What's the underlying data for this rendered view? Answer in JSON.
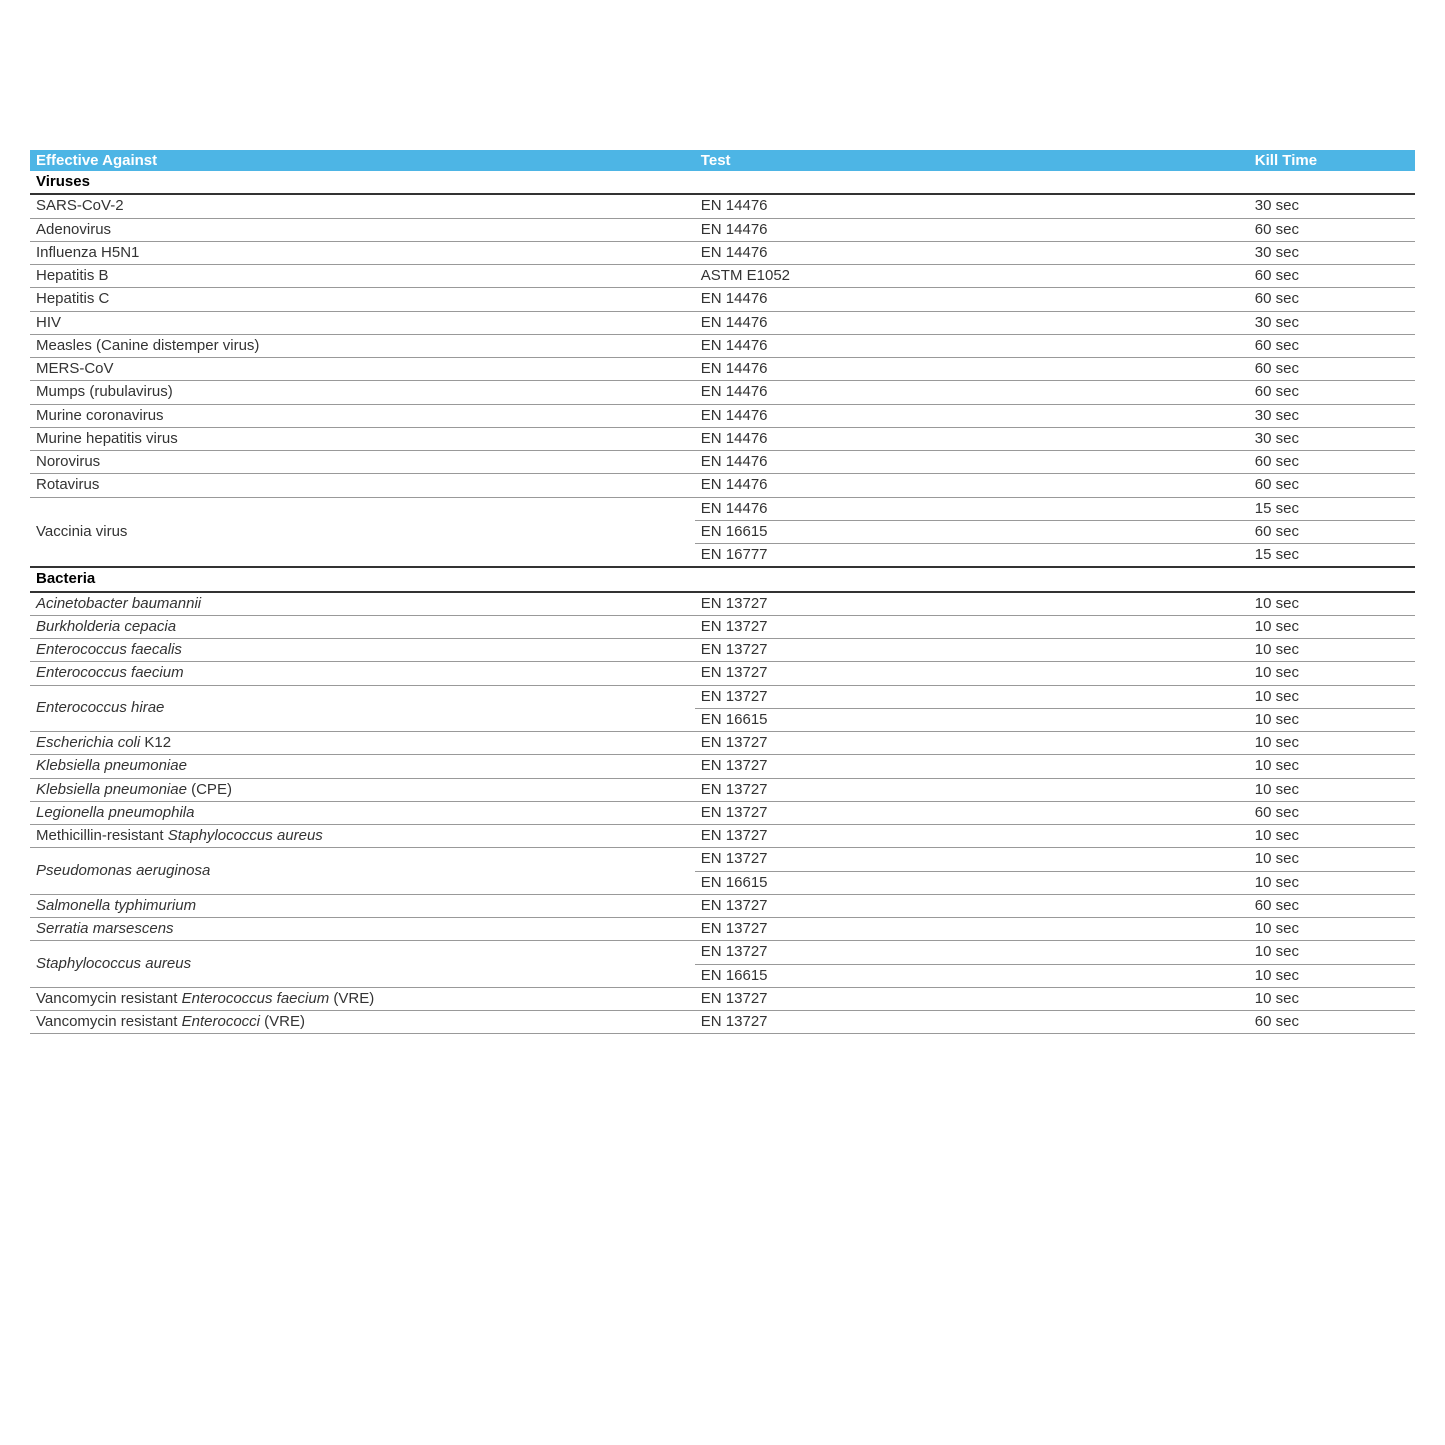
{
  "header": {
    "col1": "Effective Against",
    "col2": "Test",
    "col3": "Kill Time"
  },
  "colors": {
    "header_bg": "#4db5e5",
    "header_text": "#ffffff",
    "border": "#999999",
    "section_border": "#333333",
    "text": "#333333"
  },
  "sections": [
    {
      "title": "Viruses",
      "rows": [
        {
          "name_html": "SARS-CoV-2",
          "test": "EN 14476",
          "time": "30 sec"
        },
        {
          "name_html": "Adenovirus",
          "test": "EN 14476",
          "time": "60 sec"
        },
        {
          "name_html": "Influenza H5N1",
          "test": "EN 14476",
          "time": "30 sec"
        },
        {
          "name_html": "Hepatitis B",
          "test": "ASTM E1052",
          "time": "60 sec"
        },
        {
          "name_html": "Hepatitis C",
          "test": "EN 14476",
          "time": "60 sec"
        },
        {
          "name_html": "HIV",
          "test": "EN 14476",
          "time": "30 sec"
        },
        {
          "name_html": "Measles (Canine distemper virus)",
          "test": "EN 14476",
          "time": "60 sec"
        },
        {
          "name_html": "MERS-CoV",
          "test": "EN 14476",
          "time": "60 sec"
        },
        {
          "name_html": "Mumps (rubulavirus)",
          "test": "EN 14476",
          "time": "60 sec"
        },
        {
          "name_html": "Murine coronavirus",
          "test": "EN 14476",
          "time": "30 sec"
        },
        {
          "name_html": "Murine hepatitis virus",
          "test": "EN 14476",
          "time": "30 sec"
        },
        {
          "name_html": "Norovirus",
          "test": "EN 14476",
          "time": "60 sec"
        },
        {
          "name_html": "Rotavirus",
          "test": "EN 14476",
          "time": "60 sec"
        },
        {
          "name_html": "Vaccinia virus",
          "tests": [
            {
              "test": "EN 14476",
              "time": "15 sec"
            },
            {
              "test": "EN 16615",
              "time": "60 sec"
            },
            {
              "test": "EN 16777",
              "time": "15 sec"
            }
          ]
        }
      ]
    },
    {
      "title": "Bacteria",
      "rows": [
        {
          "name_html": "<span class=\"italic\">Acinetobacter baumannii</span>",
          "test": "EN 13727",
          "time": "10 sec"
        },
        {
          "name_html": "<span class=\"italic\">Burkholderia cepacia</span>",
          "test": "EN 13727",
          "time": "10 sec"
        },
        {
          "name_html": "<span class=\"italic\">Enterococcus faecalis</span>",
          "test": "EN 13727",
          "time": "10 sec"
        },
        {
          "name_html": "<span class=\"italic\">Enterococcus faecium</span>",
          "test": "EN 13727",
          "time": "10 sec"
        },
        {
          "name_html": "<span class=\"italic\">Enterococcus hirae</span>",
          "tests": [
            {
              "test": "EN 13727",
              "time": "10 sec"
            },
            {
              "test": "EN 16615",
              "time": "10 sec"
            }
          ]
        },
        {
          "name_html": "<span class=\"italic\">Escherichia coli</span> K12",
          "test": "EN 13727",
          "time": "10 sec"
        },
        {
          "name_html": "<span class=\"italic\">Klebsiella pneumoniae</span>",
          "test": "EN 13727",
          "time": "10 sec"
        },
        {
          "name_html": "<span class=\"italic\">Klebsiella pneumoniae</span> (CPE)",
          "test": "EN 13727",
          "time": "10 sec"
        },
        {
          "name_html": "<span class=\"italic\">Legionella pneumophila</span>",
          "test": "EN 13727",
          "time": "60 sec"
        },
        {
          "name_html": "Methicillin-resistant <span class=\"italic\">Staphylococcus aureus</span>",
          "test": "EN 13727",
          "time": "10 sec"
        },
        {
          "name_html": "<span class=\"italic\">Pseudomonas aeruginosa</span>",
          "tests": [
            {
              "test": "EN 13727",
              "time": "10 sec"
            },
            {
              "test": "EN 16615",
              "time": "10 sec"
            }
          ]
        },
        {
          "name_html": "<span class=\"italic\">Salmonella typhimurium</span>",
          "test": "EN 13727",
          "time": "60 sec"
        },
        {
          "name_html": "<span class=\"italic\">Serratia marsescens</span>",
          "test": "EN 13727",
          "time": "10 sec"
        },
        {
          "name_html": "<span class=\"italic\">Staphylococcus aureus</span>",
          "tests": [
            {
              "test": "EN 13727",
              "time": "10 sec"
            },
            {
              "test": "EN 16615",
              "time": "10 sec"
            }
          ]
        },
        {
          "name_html": "Vancomycin resistant <span class=\"italic\">Enterococcus faecium</span> (VRE)",
          "test": "EN 13727",
          "time": "10 sec"
        },
        {
          "name_html": "Vancomycin resistant <span class=\"italic\">Enterococci</span> (VRE)",
          "test": "EN 13727",
          "time": "60 sec"
        }
      ]
    }
  ]
}
